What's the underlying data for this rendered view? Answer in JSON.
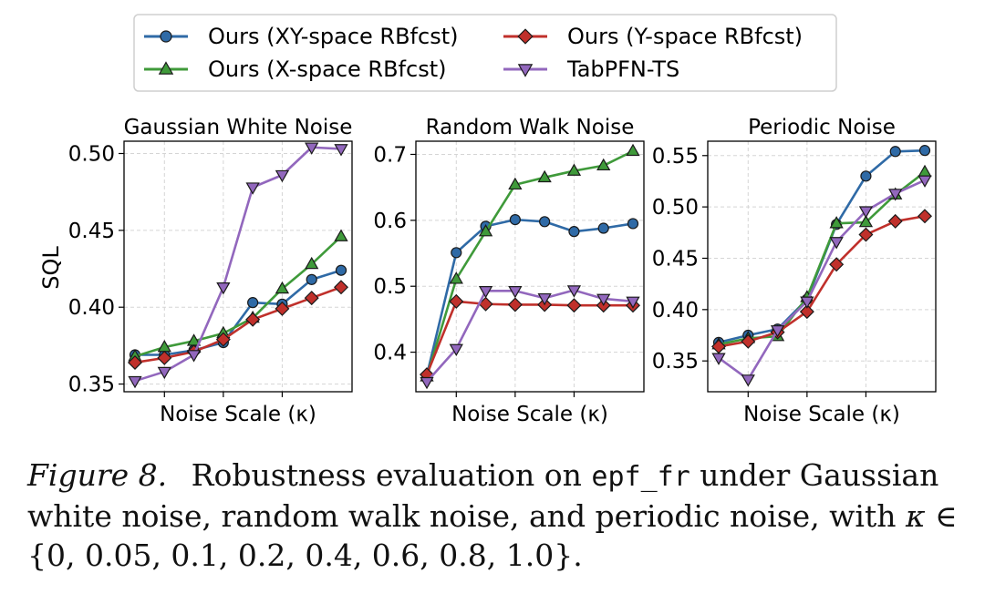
{
  "chart_data": {
    "type": "line",
    "legend": {
      "placement": "top-center",
      "entries": [
        {
          "key": "xy",
          "label": "Ours (XY-space RBfcst)",
          "color": "#2f6aa6",
          "marker": "circle"
        },
        {
          "key": "y",
          "label": "Ours (Y-space RBfcst)",
          "color": "#c0302b",
          "marker": "diamond"
        },
        {
          "key": "x",
          "label": "Ours (X-space RBfcst)",
          "color": "#3f9a3a",
          "marker": "triangle-up"
        },
        {
          "key": "tab",
          "label": "TabPFN-TS",
          "color": "#9267bd",
          "marker": "triangle-down"
        }
      ]
    },
    "ylabel": "SQL",
    "x": [
      0,
      0.05,
      0.1,
      0.2,
      0.4,
      0.6,
      0.8,
      1.0
    ],
    "panels": [
      {
        "title": "Gaussian White Noise",
        "xlabel": "Noise Scale (κ)",
        "ylim": [
          0.345,
          0.508
        ],
        "yticks": [
          "0.35",
          "0.40",
          "0.45",
          "0.50"
        ],
        "series": [
          {
            "key": "xy",
            "name": "Ours (XY-space RBfcst)",
            "values": [
              0.369,
              0.369,
              0.372,
              0.377,
              0.403,
              0.402,
              0.418,
              0.424
            ]
          },
          {
            "key": "x",
            "name": "Ours (X-space RBfcst)",
            "values": [
              0.368,
              0.374,
              0.378,
              0.383,
              0.393,
              0.412,
              0.428,
              0.446
            ]
          },
          {
            "key": "y",
            "name": "Ours (Y-space RBfcst)",
            "values": [
              0.364,
              0.367,
              0.371,
              0.379,
              0.392,
              0.399,
              0.406,
              0.413
            ]
          },
          {
            "key": "tab",
            "name": "TabPFN-TS",
            "values": [
              0.352,
              0.358,
              0.369,
              0.413,
              0.478,
              0.486,
              0.504,
              0.503
            ]
          }
        ]
      },
      {
        "title": "Random Walk Noise",
        "xlabel": "Noise Scale (κ)",
        "ylim": [
          0.34,
          0.72
        ],
        "yticks": [
          "0.4",
          "0.5",
          "0.6",
          "0.7"
        ],
        "series": [
          {
            "key": "xy",
            "name": "Ours (XY-space RBfcst)",
            "values": [
              0.365,
              0.551,
              0.591,
              0.601,
              0.598,
              0.583,
              0.588,
              0.595
            ]
          },
          {
            "key": "x",
            "name": "Ours (X-space RBfcst)",
            "values": [
              0.363,
              0.511,
              0.583,
              0.654,
              0.665,
              0.675,
              0.683,
              0.705
            ]
          },
          {
            "key": "y",
            "name": "Ours (Y-space RBfcst)",
            "values": [
              0.366,
              0.477,
              0.473,
              0.472,
              0.472,
              0.471,
              0.471,
              0.471
            ]
          },
          {
            "key": "tab",
            "name": "TabPFN-TS",
            "values": [
              0.355,
              0.405,
              0.493,
              0.493,
              0.482,
              0.494,
              0.481,
              0.477
            ]
          }
        ]
      },
      {
        "title": "Periodic Noise",
        "xlabel": "Noise Scale (κ)",
        "ylim": [
          0.32,
          0.564
        ],
        "yticks": [
          "0.35",
          "0.40",
          "0.45",
          "0.50",
          "0.55"
        ],
        "series": [
          {
            "key": "xy",
            "name": "Ours (XY-space RBfcst)",
            "values": [
              0.368,
              0.375,
              0.381,
              0.41,
              0.483,
              0.53,
              0.554,
              0.555
            ]
          },
          {
            "key": "x",
            "name": "Ours (X-space RBfcst)",
            "values": [
              0.366,
              0.372,
              0.374,
              0.412,
              0.484,
              0.485,
              0.512,
              0.534
            ]
          },
          {
            "key": "y",
            "name": "Ours (Y-space RBfcst)",
            "values": [
              0.364,
              0.369,
              0.378,
              0.398,
              0.444,
              0.473,
              0.486,
              0.491
            ]
          },
          {
            "key": "tab",
            "name": "TabPFN-TS",
            "values": [
              0.353,
              0.332,
              0.38,
              0.408,
              0.466,
              0.496,
              0.513,
              0.526
            ]
          }
        ]
      }
    ]
  },
  "caption": {
    "label": "Figure 8.",
    "text_before": "Robustness evaluation on",
    "dataset": "epf_fr",
    "text_after": "under Gaussian white noise, random walk noise, and periodic noise, with",
    "symbol": "κ",
    "relation": "∈",
    "set": "{0, 0.05, 0.1, 0.2, 0.4, 0.6, 0.8, 1.0}."
  }
}
